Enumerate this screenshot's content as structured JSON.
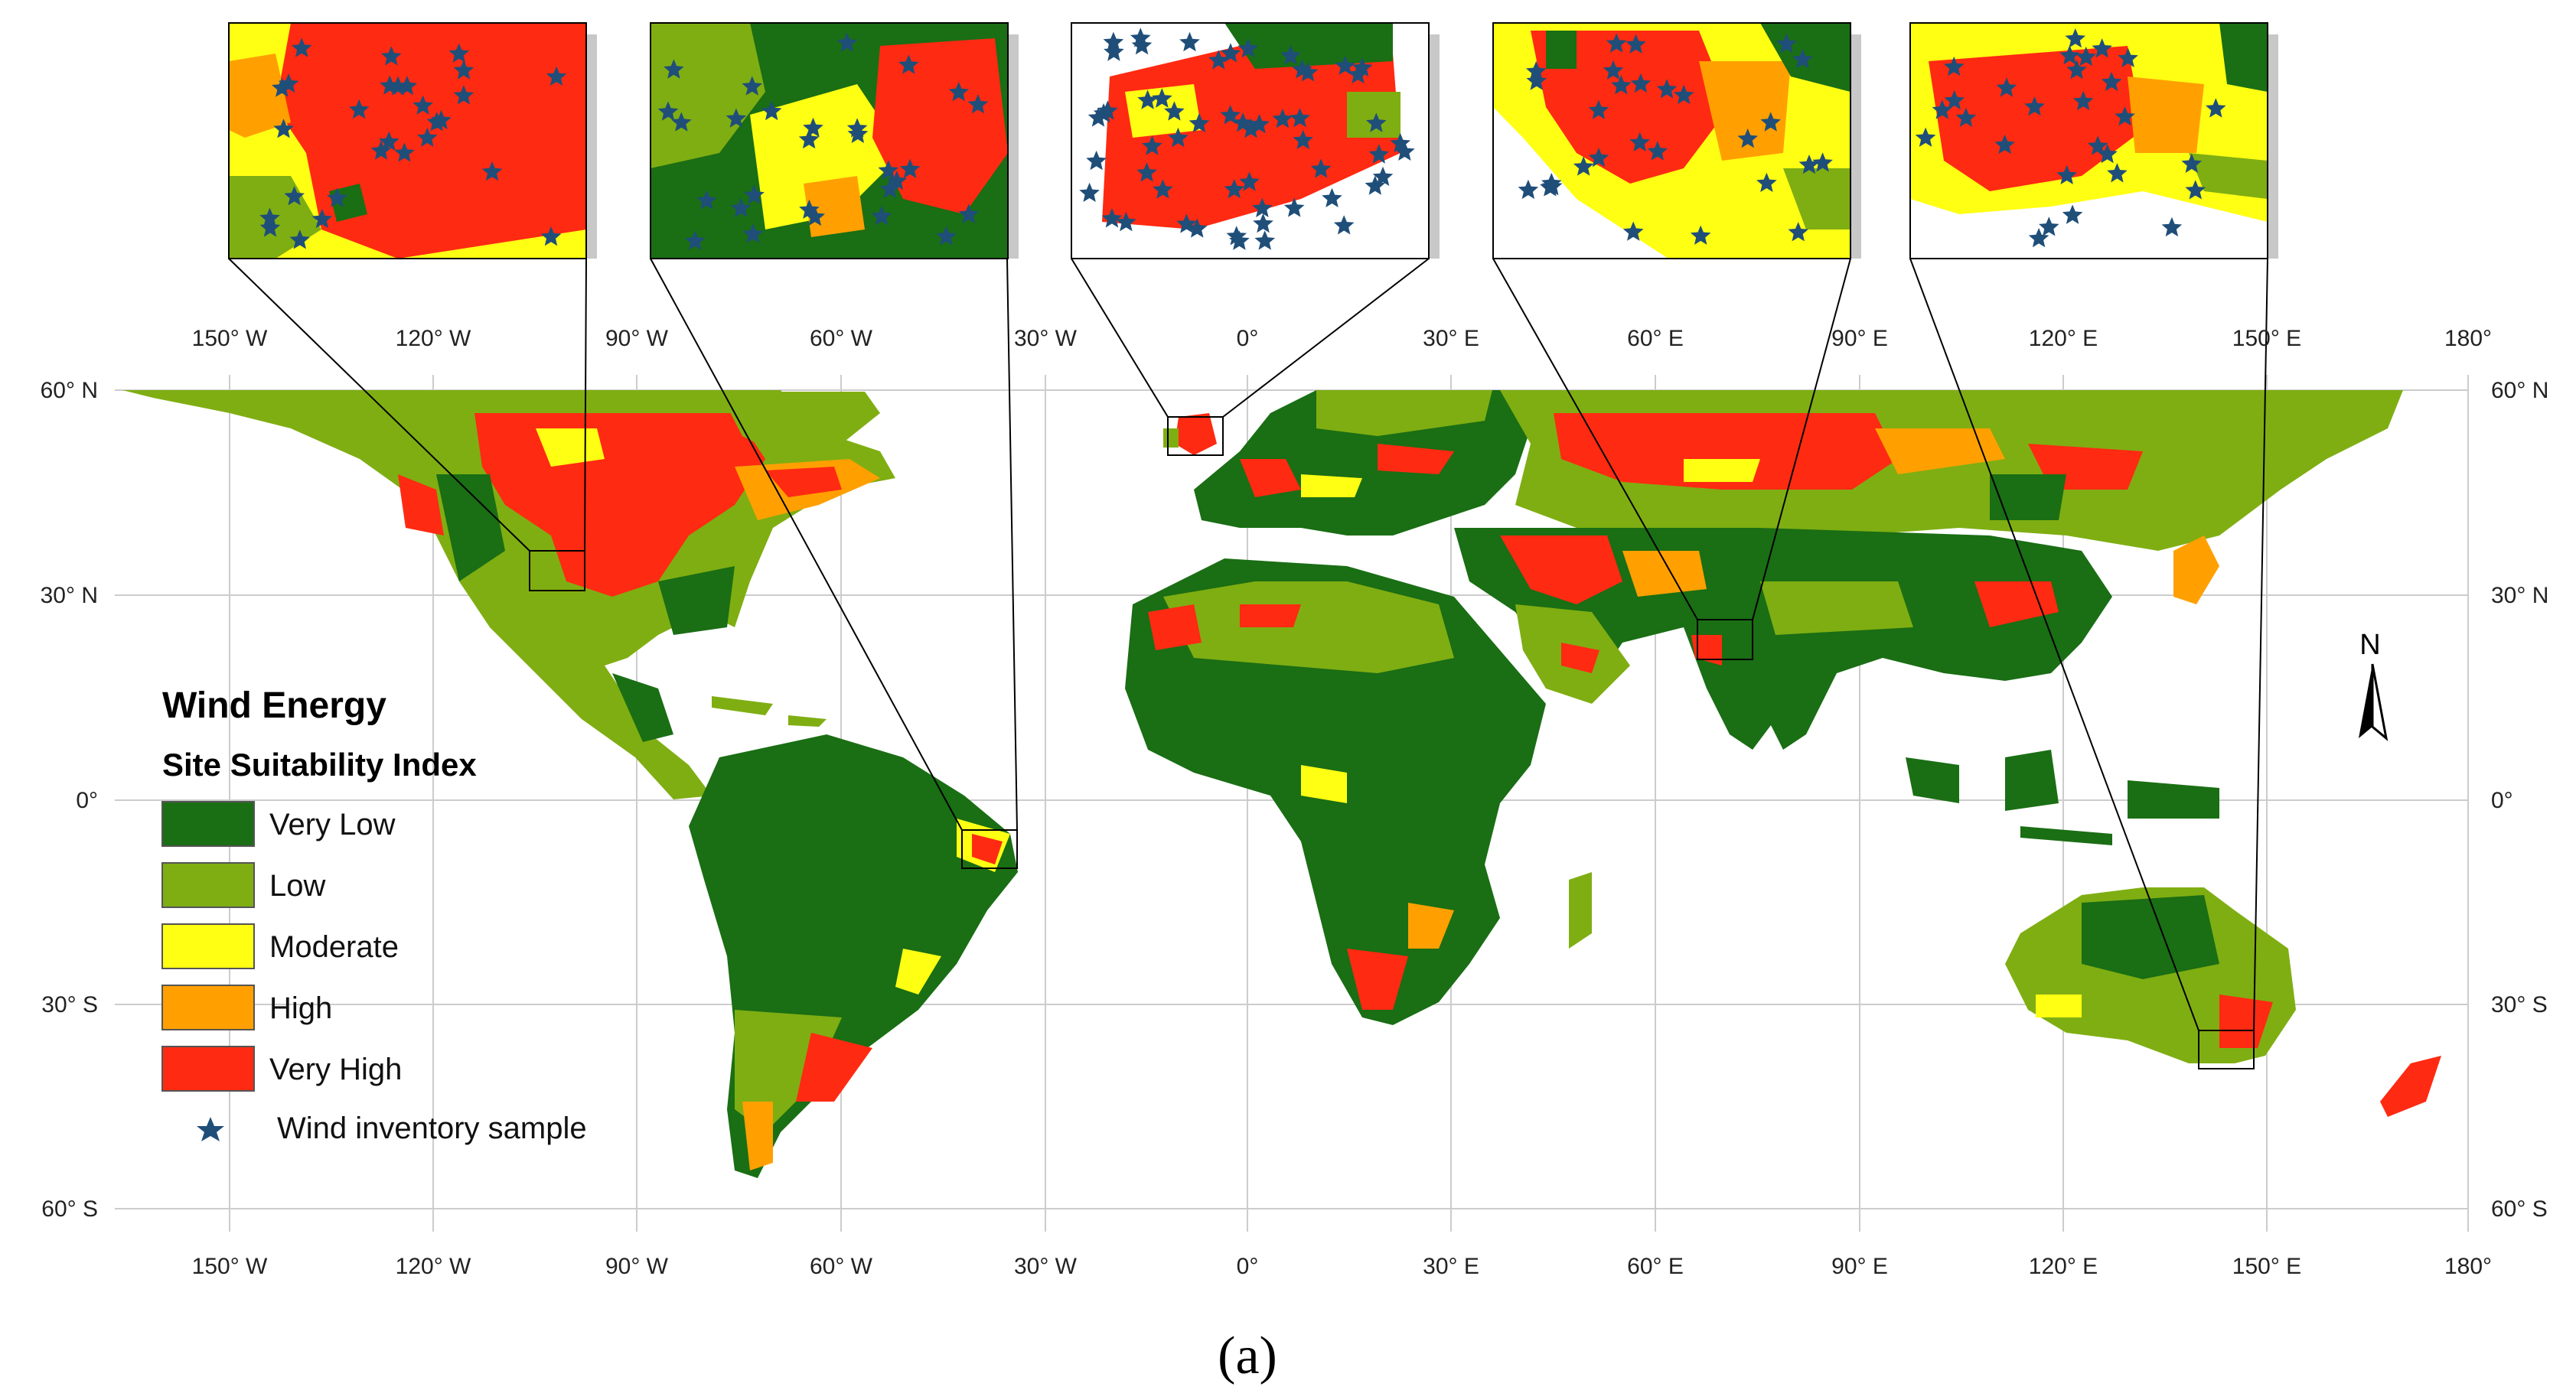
{
  "colors": {
    "very_low": "#1a6e14",
    "low": "#7fae12",
    "moderate": "#ffff14",
    "high": "#ffa000",
    "very_high": "#ff2a12",
    "sample_star": "#1f4e79",
    "grid": "#cccccc",
    "land_default": "#7fae12"
  },
  "legend": {
    "title_line1": "Wind Energy",
    "title_line2": "Site Suitability Index",
    "classes": [
      {
        "label": "Very Low",
        "color": "#1a6e14"
      },
      {
        "label": "Low",
        "color": "#7fae12"
      },
      {
        "label": "Moderate",
        "color": "#ffff14"
      },
      {
        "label": "High",
        "color": "#ffa000"
      },
      {
        "label": "Very High",
        "color": "#ff2a12"
      }
    ],
    "sample_label": "Wind inventory sample"
  },
  "axes": {
    "lon_ticks": [
      "150° W",
      "120° W",
      "90° W",
      "60° W",
      "30° W",
      "0°",
      "30° E",
      "60° E",
      "90° E",
      "120° E",
      "150° E",
      "180°"
    ],
    "lat_ticks": [
      "60° N",
      "30° N",
      "0°",
      "30° S",
      "60° S"
    ]
  },
  "north_arrow": {
    "label": "N"
  },
  "caption": "(a)"
}
